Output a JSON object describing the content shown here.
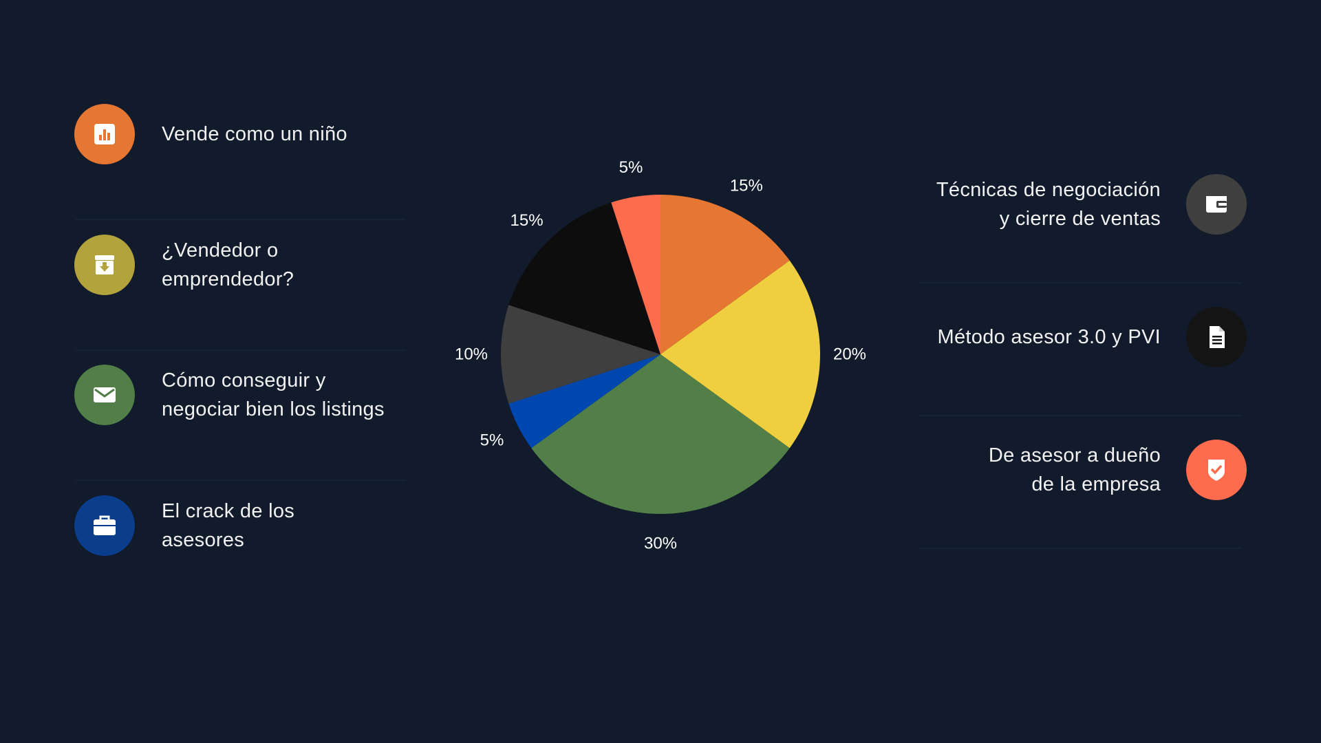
{
  "left_items": [
    {
      "label": "Vende como un niño",
      "icon": "bar-chart-icon",
      "color": "#e67733"
    },
    {
      "label": "¿Vendedor o\nemprendedor?",
      "icon": "archive-download-icon",
      "color": "#b3a33d"
    },
    {
      "label": "Cómo conseguir y\nnegociar bien los listings",
      "icon": "mail-icon",
      "color": "#517f47"
    },
    {
      "label": "El crack de los\nasesores",
      "icon": "briefcase-icon",
      "color": "#0a3d8c"
    }
  ],
  "right_items": [
    {
      "label": "Técnicas de negociación\ny cierre de ventas",
      "icon": "wallet-icon",
      "color": "#3f3f3f"
    },
    {
      "label": "Método asesor 3.0 y PVI",
      "icon": "document-icon",
      "color": "#141414"
    },
    {
      "label": "De asesor a dueño\nde la empresa",
      "icon": "shield-check-icon",
      "color": "#fe6c4d"
    }
  ],
  "chart_data": {
    "type": "pie",
    "start": "12 o'clock, clockwise",
    "slices": [
      {
        "value": 15,
        "label": "15%",
        "color": "#e67733"
      },
      {
        "value": 20,
        "label": "20%",
        "color": "#efcf40"
      },
      {
        "value": 30,
        "label": "30%",
        "color": "#517f47"
      },
      {
        "value": 5,
        "label": "5%",
        "color": "#0047b0"
      },
      {
        "value": 10,
        "label": "10%",
        "color": "#3f3f3f"
      },
      {
        "value": 15,
        "label": "15%",
        "color": "#0d0d0d"
      },
      {
        "value": 5,
        "label": "5%",
        "color": "#fe6c4d"
      }
    ]
  }
}
